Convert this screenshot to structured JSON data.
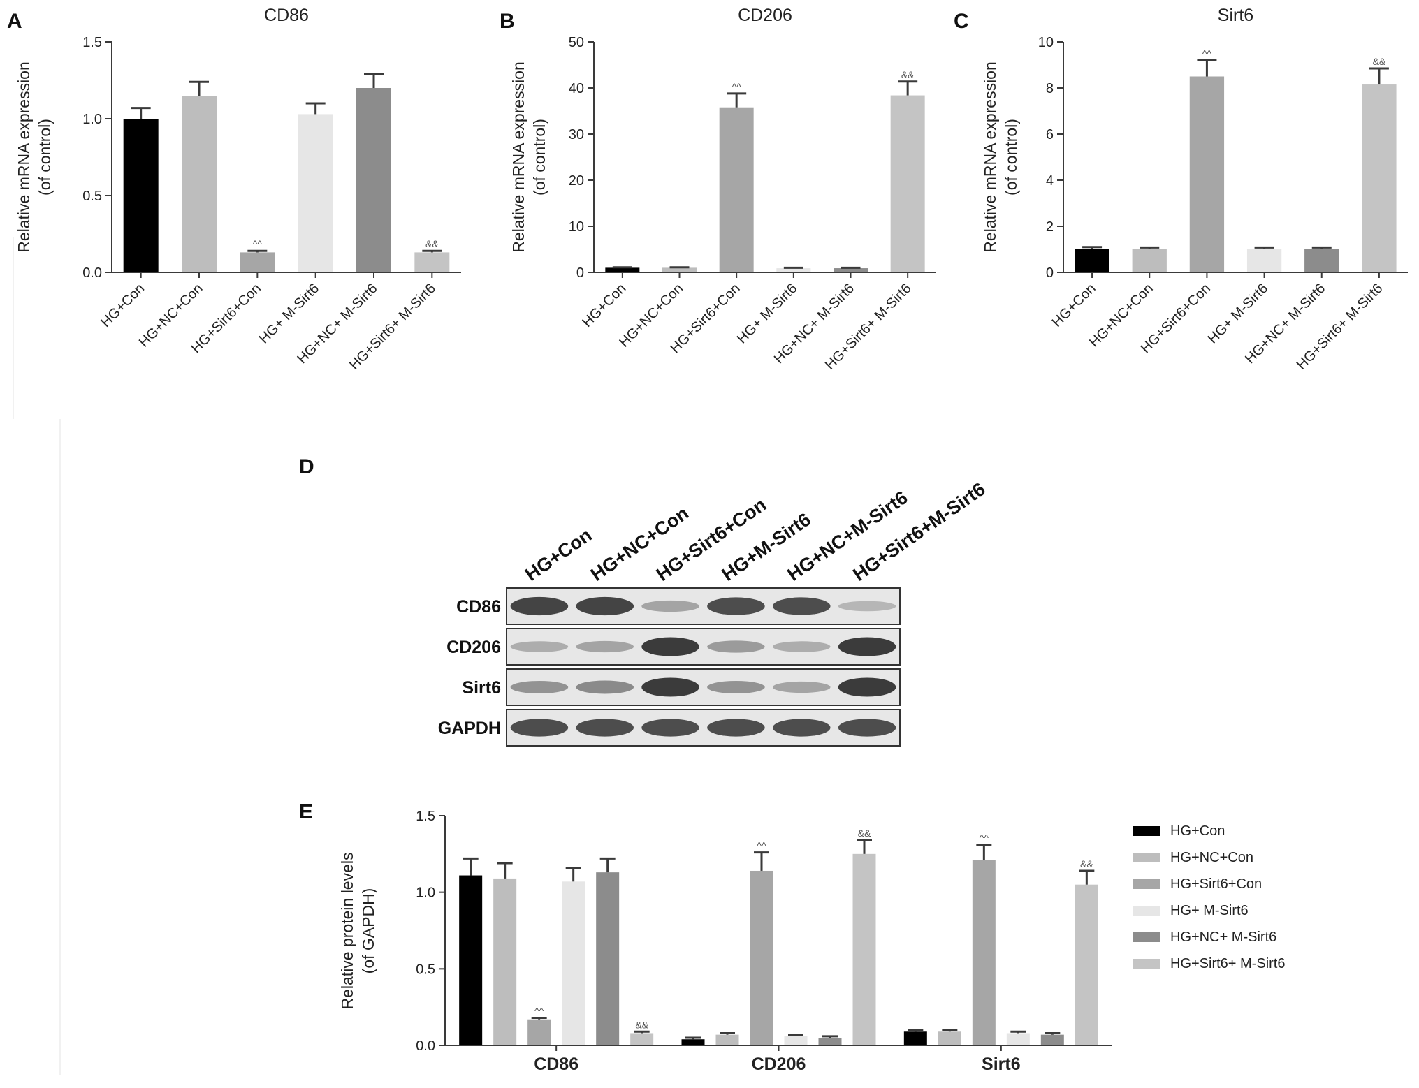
{
  "panels": {
    "A": "A",
    "B": "B",
    "C": "C",
    "D": "D",
    "E": "E"
  },
  "chart_data": [
    {
      "panel": "A",
      "type": "bar",
      "title": "CD86",
      "ylabel": [
        "Relative mRNA expression",
        "(of control)"
      ],
      "ylim": [
        0,
        1.5
      ],
      "yticks": [
        "0.0",
        "0.5",
        "1.0",
        "1.5"
      ],
      "categories": [
        "HG+Con",
        "HG+NC+Con",
        "HG+Sirt6+Con",
        "HG+ M-Sirt6",
        "HG+NC+ M-Sirt6",
        "HG+Sirt6+ M-Sirt6"
      ],
      "values": [
        1.0,
        1.15,
        0.13,
        1.03,
        1.2,
        0.13
      ],
      "errors": [
        0.07,
        0.09,
        0.01,
        0.07,
        0.09,
        0.01
      ],
      "annotations": [
        "",
        "",
        "^^",
        "",
        "",
        "&&"
      ]
    },
    {
      "panel": "B",
      "type": "bar",
      "title": "CD206",
      "ylabel": [
        "Relative mRNA expression",
        "(of control)"
      ],
      "ylim": [
        0,
        50
      ],
      "yticks": [
        "0",
        "10",
        "20",
        "30",
        "40",
        "50"
      ],
      "categories": [
        "HG+Con",
        "HG+NC+Con",
        "HG+Sirt6+Con",
        "HG+ M-Sirt6",
        "HG+NC+ M-Sirt6",
        "HG+Sirt6+ M-Sirt6"
      ],
      "values": [
        1.0,
        1.0,
        35.8,
        0.9,
        0.9,
        38.4
      ],
      "errors": [
        0.1,
        0.1,
        3.0,
        0.1,
        0.1,
        3.0
      ],
      "annotations": [
        "",
        "",
        "^^",
        "",
        "",
        "&&"
      ]
    },
    {
      "panel": "C",
      "type": "bar",
      "title": "Sirt6",
      "ylabel": [
        "Relative mRNA expression",
        "(of control)"
      ],
      "ylim": [
        0,
        10
      ],
      "yticks": [
        "0",
        "2",
        "4",
        "6",
        "8",
        "10"
      ],
      "categories": [
        "HG+Con",
        "HG+NC+Con",
        "HG+Sirt6+Con",
        "HG+ M-Sirt6",
        "HG+NC+ M-Sirt6",
        "HG+Sirt6+ M-Sirt6"
      ],
      "values": [
        1.0,
        1.0,
        8.5,
        1.0,
        1.0,
        8.15
      ],
      "errors": [
        0.1,
        0.08,
        0.7,
        0.08,
        0.08,
        0.7
      ],
      "annotations": [
        "",
        "",
        "^^",
        "",
        "",
        "&&"
      ]
    },
    {
      "panel": "E",
      "type": "bar",
      "ylabel": [
        "Relative protein levels",
        "(of GAPDH)"
      ],
      "ylim": [
        0,
        1.5
      ],
      "yticks": [
        "0.0",
        "0.5",
        "1.0",
        "1.5"
      ],
      "categories": [
        "CD86",
        "CD206",
        "Sirt6"
      ],
      "series": [
        {
          "name": "HG+Con",
          "values": [
            1.11,
            0.04,
            0.09
          ],
          "errors": [
            0.11,
            0.01,
            0.01
          ]
        },
        {
          "name": "HG+NC+Con",
          "values": [
            1.09,
            0.07,
            0.09
          ],
          "errors": [
            0.1,
            0.01,
            0.01
          ]
        },
        {
          "name": "HG+Sirt6+Con",
          "values": [
            0.17,
            1.14,
            1.21
          ],
          "errors": [
            0.01,
            0.12,
            0.1
          ]
        },
        {
          "name": "HG+ M-Sirt6",
          "values": [
            1.07,
            0.06,
            0.08
          ],
          "errors": [
            0.09,
            0.01,
            0.01
          ]
        },
        {
          "name": "HG+NC+ M-Sirt6",
          "values": [
            1.13,
            0.05,
            0.07
          ],
          "errors": [
            0.09,
            0.01,
            0.01
          ]
        },
        {
          "name": "HG+Sirt6+ M-Sirt6",
          "values": [
            0.08,
            1.25,
            1.05
          ],
          "errors": [
            0.01,
            0.09,
            0.09
          ]
        }
      ],
      "annotations": [
        [
          "",
          "",
          "^^",
          "",
          "",
          "&&"
        ],
        [
          "",
          "",
          "^^",
          "",
          "",
          "&&"
        ],
        [
          "",
          "",
          "^^",
          "",
          "",
          "&&"
        ]
      ],
      "legend": "right"
    }
  ],
  "bar_colors": [
    "#000000",
    "#bdbdbd",
    "#a6a6a6",
    "#e6e6e6",
    "#8c8c8c",
    "#c4c4c4"
  ],
  "blot": {
    "lanes": [
      "HG+Con",
      "HG+NC+Con",
      "HG+Sirt6+Con",
      "HG+M-Sirt6",
      "HG+NC+M-Sirt6",
      "HG+Sirt6+M-Sirt6"
    ],
    "rows": [
      {
        "label": "CD86",
        "intensity": [
          0.9,
          0.9,
          0.35,
          0.85,
          0.85,
          0.25
        ]
      },
      {
        "label": "CD206",
        "intensity": [
          0.3,
          0.35,
          0.95,
          0.4,
          0.3,
          0.95
        ]
      },
      {
        "label": "Sirt6",
        "intensity": [
          0.45,
          0.5,
          0.95,
          0.45,
          0.35,
          0.95
        ]
      },
      {
        "label": "GAPDH",
        "intensity": [
          0.85,
          0.85,
          0.85,
          0.85,
          0.85,
          0.85
        ]
      }
    ]
  }
}
